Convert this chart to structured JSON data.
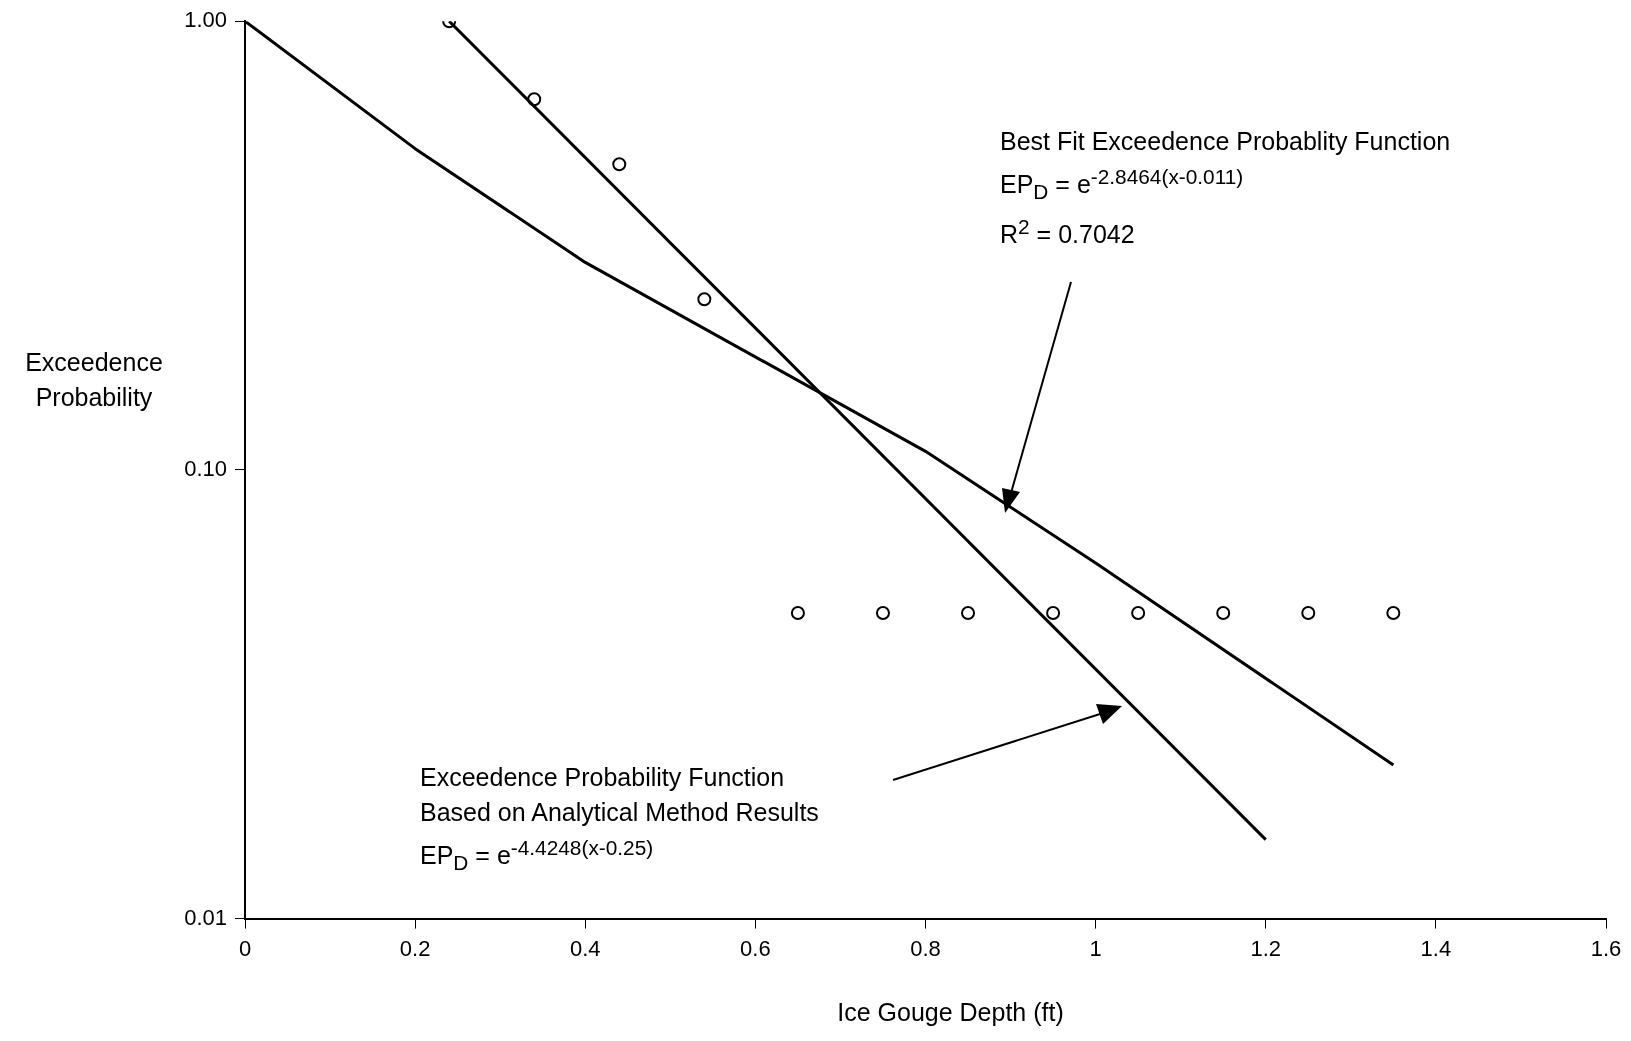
{
  "chart_data": {
    "type": "scatter",
    "xlabel": "Ice Gouge Depth (ft)",
    "ylabel": "Exceedence Probability",
    "log": "y",
    "xlim": [
      0,
      1.6
    ],
    "ylim": [
      0.01,
      1
    ],
    "xticks": [
      0,
      0.2,
      0.4,
      0.6,
      0.8,
      1,
      1.2,
      1.4,
      1.6
    ],
    "yticks": [
      {
        "value": 0.01,
        "label": "0.01"
      },
      {
        "value": 0.1,
        "label": "0.10"
      },
      {
        "value": 1,
        "label": "1.00"
      }
    ],
    "grid": false,
    "legend": false,
    "series": [
      {
        "color": "#000000",
        "marker": "circle",
        "x": [
          0.24,
          0.34,
          0.44,
          0.54,
          0.65,
          0.75,
          0.85,
          0.95,
          1.05,
          1.15,
          1.25,
          1.35
        ],
        "values": [
          1.0,
          0.67,
          0.48,
          0.24,
          0.048,
          0.048,
          0.048,
          0.048,
          0.048,
          0.048,
          0.048,
          0.048
        ]
      },
      {
        "type": "line",
        "color": "#000000",
        "marker": "none",
        "line_style": "solid",
        "x": [
          0.24,
          1.2
        ],
        "values": [
          1.0,
          0.015
        ]
      },
      {
        "type": "line",
        "color": "#000000",
        "marker": "none",
        "line_style": "solid",
        "x": [
          0,
          0.2,
          0.4,
          0.8,
          1.0,
          1.35
        ],
        "values": [
          1.0,
          0.52,
          0.29,
          0.11,
          0.062,
          0.022
        ]
      }
    ],
    "annotations": [
      "Best Fit Exceedence Probablity Function",
      "EP$_{D}$ = e$^{-2.8464(x-0.011)}$",
      "R$^{2}$ = 0.7042",
      "Exceedence Probability Function",
      "Based on Analytical Method Results",
      "EP$_{D}$ = e$^{-4.4248(x-0.25)}$"
    ]
  }
}
